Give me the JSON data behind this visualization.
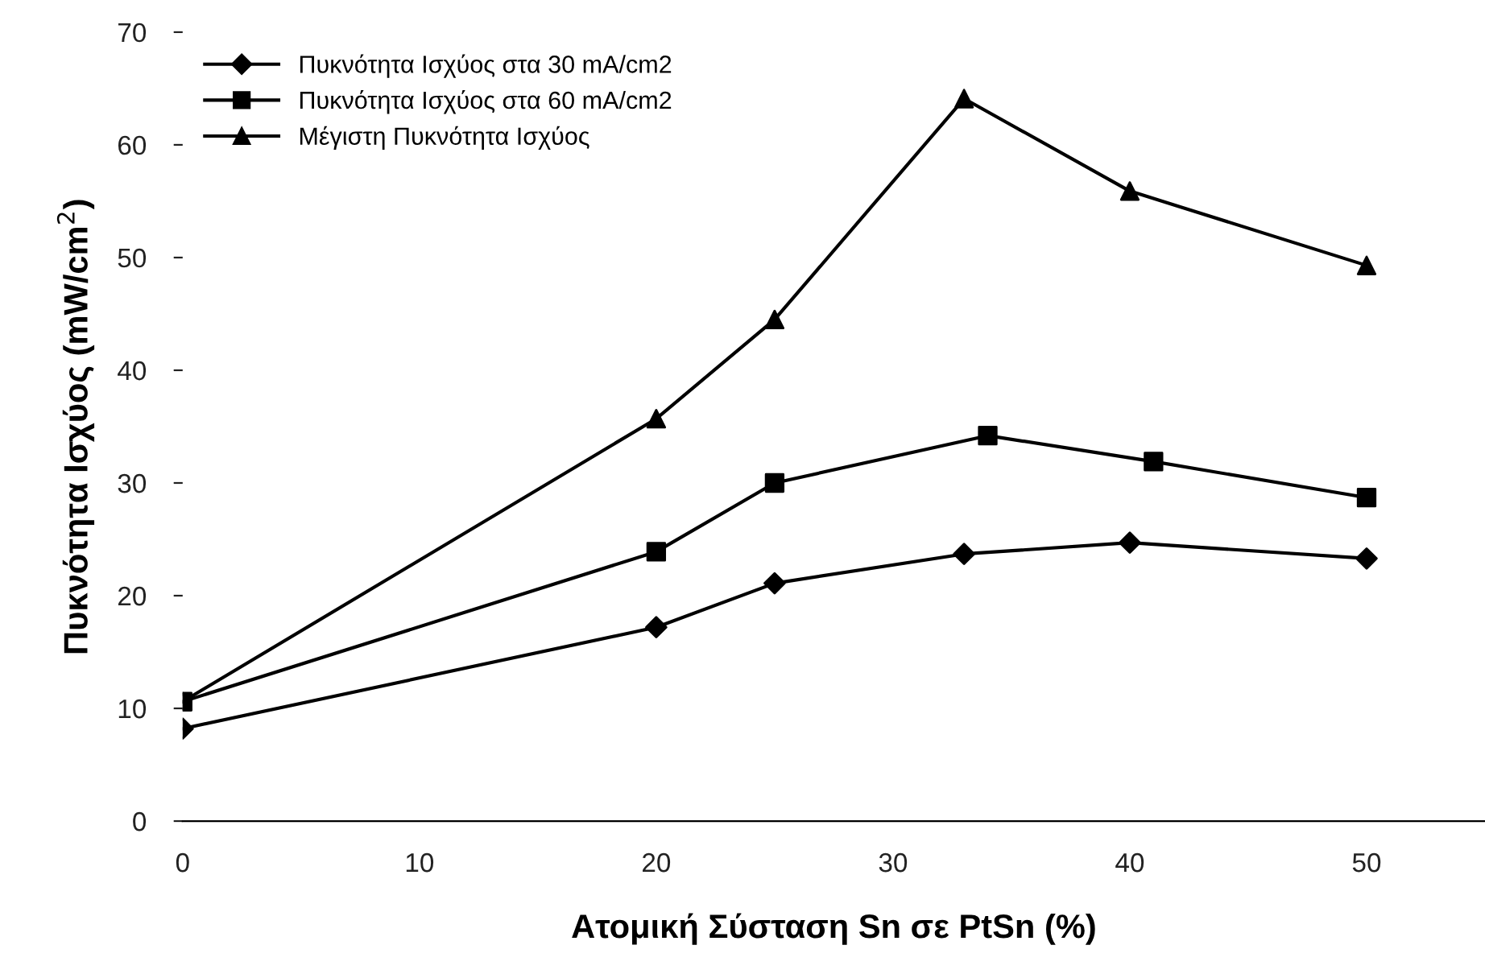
{
  "chart_data": {
    "type": "line",
    "xlabel": "Ατομική Σύσταση Sn σε PtSn (%)",
    "ylabel": "Πυκνότητα Ισχύος (mW/cm$^{2}$)",
    "xlim": [
      0,
      55
    ],
    "xticks": [
      0,
      10,
      20,
      30,
      40,
      50
    ],
    "ylim": [
      0,
      70
    ],
    "yticks": [
      0,
      10,
      20,
      30,
      40,
      50,
      60,
      70
    ],
    "grid": false,
    "legend": "top left",
    "series": [
      {
        "name": "Πυκνότητα Ισχύος στα 30 mA/cm2",
        "color": "#000000",
        "marker": "diamond",
        "x": [
          0,
          20,
          25,
          33,
          40,
          50
        ],
        "values": [
          8.2,
          17.2,
          21.1,
          23.7,
          24.7,
          23.3
        ]
      },
      {
        "name": "Πυκνότητα Ισχύος στα 60 mA/cm2",
        "color": "#000000",
        "marker": "square",
        "x": [
          0,
          20,
          25,
          34,
          41,
          50
        ],
        "values": [
          10.6,
          23.9,
          30.0,
          34.2,
          31.9,
          28.7
        ]
      },
      {
        "name": "Μέγιστη Πυκνότητα Ισχύος",
        "color": "#000000",
        "marker": "triangle",
        "x": [
          0,
          20,
          25,
          33,
          40,
          50
        ],
        "values": [
          10.6,
          35.7,
          44.5,
          64.1,
          55.9,
          49.3
        ]
      }
    ]
  }
}
